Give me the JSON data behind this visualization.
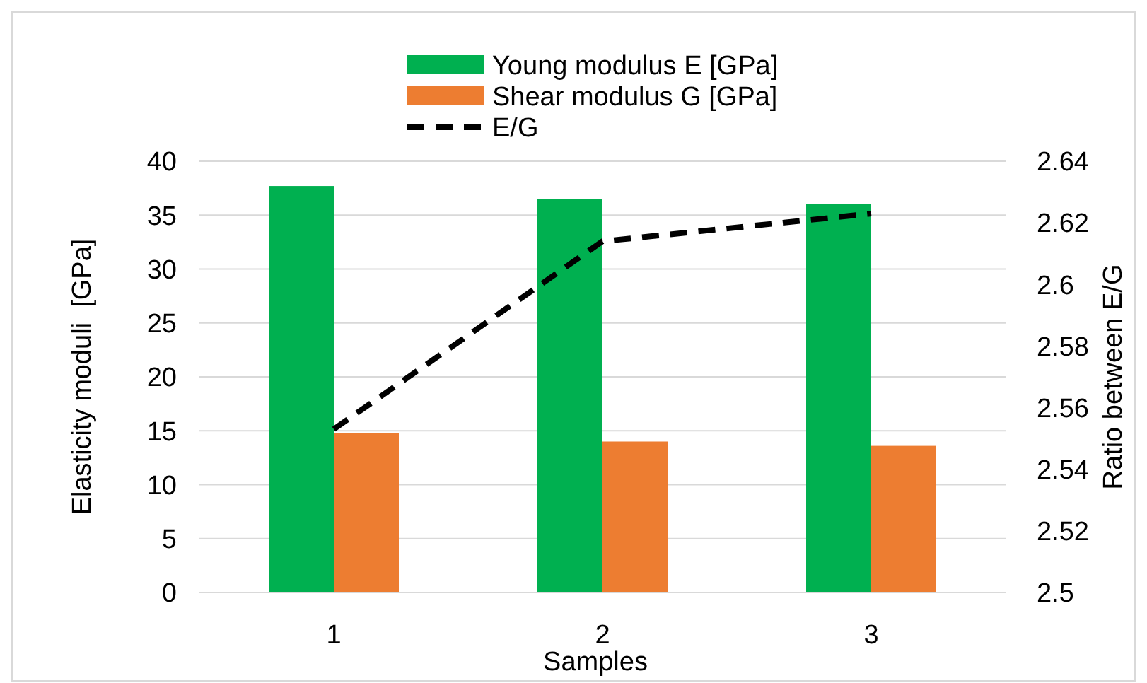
{
  "chart_data": {
    "type": "bar",
    "xlabel": "Samples",
    "ylabel": "Elasticity moduli  [GPa]",
    "y2label": "Ratio between E/G",
    "categories": [
      "1",
      "2",
      "3"
    ],
    "series": [
      {
        "name": "Young modulus E [GPa]",
        "color": "#00b050",
        "values": [
          37.7,
          36.5,
          36.0
        ]
      },
      {
        "name": "Shear modulus G [GPa]",
        "color": "#ed7d31",
        "values": [
          14.8,
          14.0,
          13.6
        ]
      },
      {
        "name": "E/G",
        "type": "line",
        "axis": "y2",
        "color": "#000000",
        "line_style": "dashed",
        "values": [
          2.553,
          2.614,
          2.623
        ]
      }
    ],
    "ylim": [
      0,
      40
    ],
    "yticks": [
      0,
      5,
      10,
      15,
      20,
      25,
      30,
      35,
      40
    ],
    "y2lim": [
      2.5,
      2.64
    ],
    "y2ticks": [
      2.5,
      2.52,
      2.54,
      2.56,
      2.58,
      2.6,
      2.62,
      2.64
    ],
    "grid": "y",
    "legend": "top"
  }
}
